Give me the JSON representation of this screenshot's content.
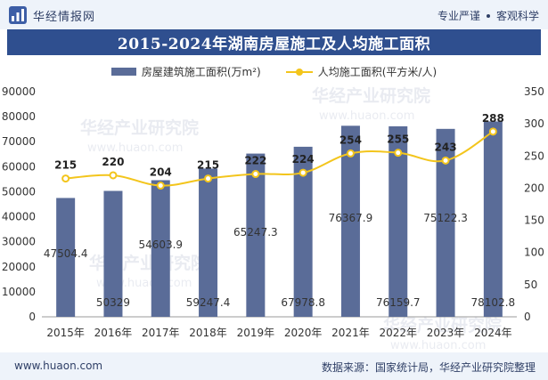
{
  "header": {
    "brand": "华经情报网",
    "tagline_left": "专业严谨",
    "tagline_right": "客观科学"
  },
  "footer": {
    "site": "www.huaon.com",
    "source": "数据来源：国家统计局，华经产业研究院整理"
  },
  "colors": {
    "bar": "#5a6c98",
    "line": "#f3c51c",
    "banner": "#2f4f8f",
    "header_bg": "#eef3fa"
  },
  "chart_data": {
    "type": "bar+line",
    "title": "2015-2024年湖南房屋施工及人均施工面积",
    "categories": [
      "2015年",
      "2016年",
      "2017年",
      "2018年",
      "2019年",
      "2020年",
      "2021年",
      "2022年",
      "2023年",
      "2024年"
    ],
    "series": [
      {
        "name": "房屋建筑施工面积(万m²)",
        "type": "bar",
        "axis": "left",
        "values": [
          47504.4,
          50329,
          54603.9,
          59247.4,
          65247.3,
          67978.8,
          76367.9,
          76159.7,
          75122.3,
          78102.8
        ],
        "labels": [
          "47504.4",
          "50329",
          "54603.9",
          "59247.4",
          "65247.3",
          "67978.8",
          "76367.9",
          "76159.7",
          "75122.3",
          "78102.8"
        ]
      },
      {
        "name": "人均施工面积(平方米/人)",
        "type": "line",
        "axis": "right",
        "values": [
          215,
          220,
          204,
          215,
          222,
          224,
          254,
          255,
          243,
          288
        ],
        "labels": [
          "215",
          "220",
          "204",
          "215",
          "222",
          "224",
          "254",
          "255",
          "243",
          "288"
        ]
      }
    ],
    "y_left": {
      "min": 0,
      "max": 90000,
      "ticks": [
        "0",
        "10000",
        "20000",
        "30000",
        "40000",
        "50000",
        "60000",
        "70000",
        "80000",
        "90000"
      ]
    },
    "y_right": {
      "min": 0,
      "max": 350,
      "ticks": [
        "0",
        "50",
        "100",
        "150",
        "200",
        "250",
        "300",
        "350"
      ]
    },
    "grid": false,
    "legend_position": "top-center"
  }
}
